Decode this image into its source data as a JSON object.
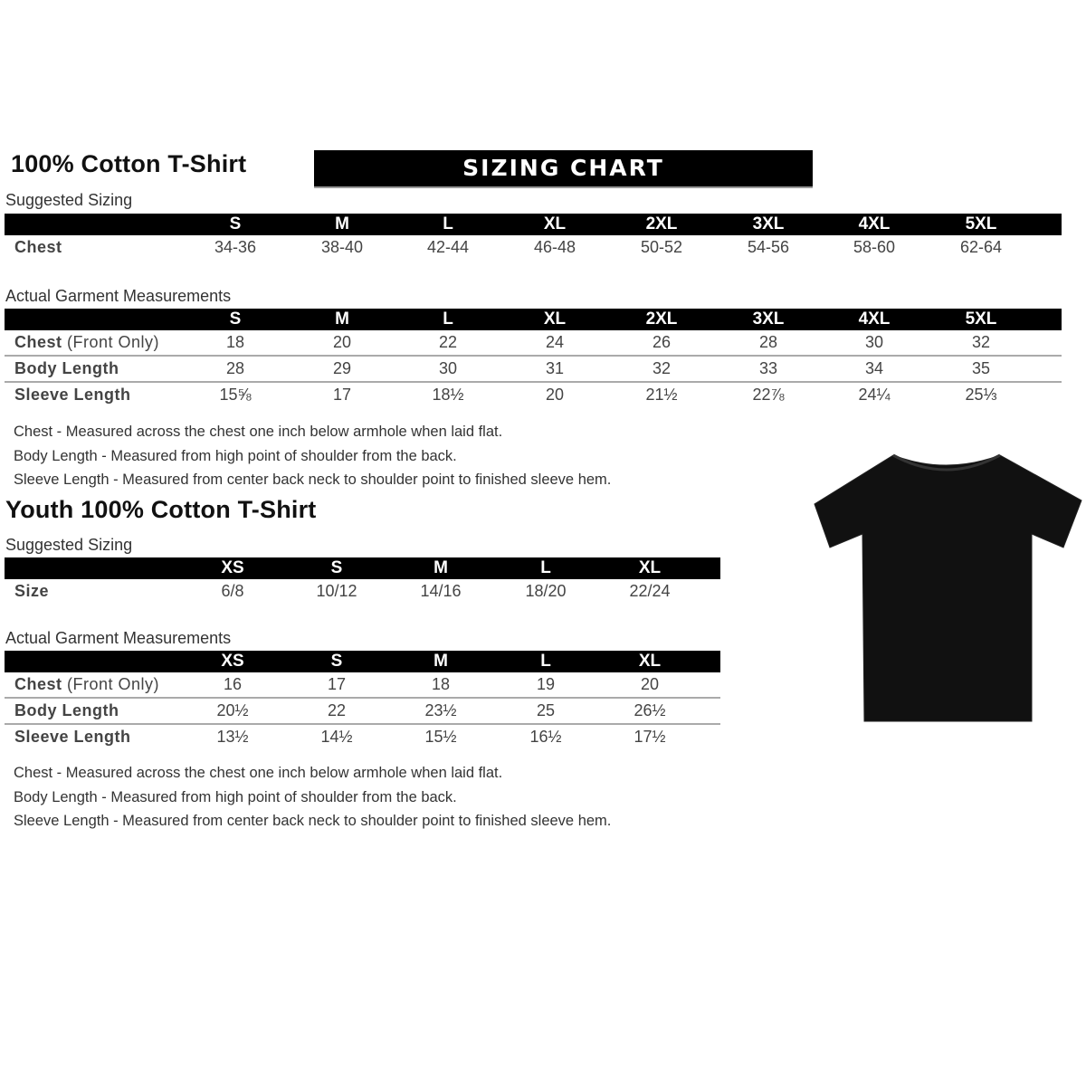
{
  "banner": "SIZING CHART",
  "adult": {
    "title": "100% Cotton T-Shirt",
    "suggested_label": "Suggested Sizing",
    "sizes": [
      "S",
      "M",
      "L",
      "XL",
      "2XL",
      "3XL",
      "4XL",
      "5XL"
    ],
    "suggested_rows": [
      {
        "label": "Chest",
        "values": [
          "34-36",
          "38-40",
          "42-44",
          "46-48",
          "50-52",
          "54-56",
          "58-60",
          "62-64"
        ]
      }
    ],
    "actual_label": "Actual Garment Measurements",
    "actual_rows": [
      {
        "label": "Chest",
        "label_extra": " (Front Only)",
        "values": [
          "18",
          "20",
          "22",
          "24",
          "26",
          "28",
          "30",
          "32"
        ]
      },
      {
        "label": "Body Length",
        "values": [
          "28",
          "29",
          "30",
          "31",
          "32",
          "33",
          "34",
          "35"
        ]
      },
      {
        "label": "Sleeve Length",
        "values": [
          "15⅝",
          "17",
          "18½",
          "20",
          "21½",
          "22⅞",
          "24¼",
          "25⅓"
        ]
      }
    ],
    "notes": [
      "Chest - Measured across the chest one inch below armhole when laid flat.",
      "Body Length - Measured from high point of shoulder from the back.",
      "Sleeve Length - Measured from center back neck to shoulder point to finished sleeve hem."
    ]
  },
  "youth": {
    "title": "Youth 100% Cotton T-Shirt",
    "suggested_label": "Suggested Sizing",
    "sizes": [
      "XS",
      "S",
      "M",
      "L",
      "XL"
    ],
    "suggested_rows": [
      {
        "label": "Size",
        "values": [
          "6/8",
          "10/12",
          "14/16",
          "18/20",
          "22/24"
        ]
      }
    ],
    "actual_label": "Actual Garment Measurements",
    "actual_rows": [
      {
        "label": "Chest",
        "label_extra": " (Front Only)",
        "values": [
          "16",
          "17",
          "18",
          "19",
          "20"
        ]
      },
      {
        "label": "Body Length",
        "values": [
          "20½",
          "22",
          "23½",
          "25",
          "26½"
        ]
      },
      {
        "label": "Sleeve Length",
        "values": [
          "13½",
          "14½",
          "15½",
          "16½",
          "17½"
        ]
      }
    ],
    "notes": [
      "Chest - Measured across the chest one inch below armhole when laid flat.",
      "Body Length - Measured from high point of shoulder from the back.",
      "Sleeve Length - Measured from center back neck to shoulder point to finished sleeve hem."
    ]
  },
  "colors": {
    "header_bg": "#000000",
    "shirt": "#111111"
  },
  "image": {
    "icon": "tshirt-icon"
  }
}
